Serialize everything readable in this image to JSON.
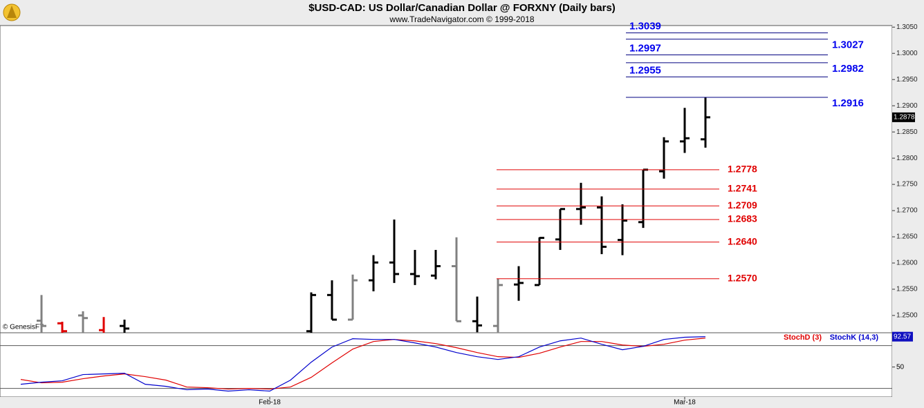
{
  "chart_data": {
    "type": "ohlc",
    "title": "$USD-CAD:  US Dollar/Canadian Dollar @ FORXNY  (Daily bars)",
    "subtitle": "www.TradeNavigator.com © 1999-2018",
    "watermark": "© GenesisFT",
    "xlim": [
      0,
      43
    ],
    "xticks": [
      {
        "value": 13,
        "label": "Feb-18"
      },
      {
        "value": 33,
        "label": "Mar-18"
      }
    ],
    "ylim": [
      1.2467,
      1.3053
    ],
    "yticks": [
      {
        "value": 1.25,
        "label": "1.2500"
      },
      {
        "value": 1.255,
        "label": "1.2550"
      },
      {
        "value": 1.26,
        "label": "1.2600"
      },
      {
        "value": 1.265,
        "label": "1.2650"
      },
      {
        "value": 1.27,
        "label": "1.2700"
      },
      {
        "value": 1.275,
        "label": "1.2750"
      },
      {
        "value": 1.28,
        "label": "1.2800"
      },
      {
        "value": 1.285,
        "label": "1.2850"
      },
      {
        "value": 1.29,
        "label": "1.2900"
      },
      {
        "value": 1.295,
        "label": "1.2950"
      },
      {
        "value": 1.3,
        "label": "1.3000"
      },
      {
        "value": 1.305,
        "label": "1.3050"
      }
    ],
    "bars": {
      "x": [
        2,
        3,
        4,
        5,
        6,
        15,
        16,
        17,
        18,
        19,
        20,
        21,
        22,
        23,
        24,
        25,
        26,
        27,
        28,
        29,
        30,
        31,
        32,
        33,
        34
      ],
      "open": [
        1.249,
        1.2485,
        1.25,
        1.2472,
        1.248,
        1.247,
        1.2539,
        1.2492,
        1.2567,
        1.2601,
        1.2579,
        1.2576,
        1.2594,
        1.2489,
        1.248,
        1.2559,
        1.2558,
        1.2645,
        1.2703,
        1.2706,
        1.2644,
        1.2678,
        1.2775,
        1.2832,
        1.2836
      ],
      "high": [
        1.2539,
        1.2488,
        1.2508,
        1.2497,
        1.2492,
        1.2544,
        1.2567,
        1.2578,
        1.2615,
        1.2683,
        1.2625,
        1.2625,
        1.2649,
        1.2536,
        1.257,
        1.2594,
        1.2649,
        1.2703,
        1.2753,
        1.2727,
        1.2712,
        1.2778,
        1.284,
        1.2896,
        1.2916
      ],
      "low": [
        1.246,
        1.246,
        1.246,
        1.246,
        1.246,
        1.2467,
        1.2492,
        1.2492,
        1.2546,
        1.2562,
        1.2558,
        1.2569,
        1.2489,
        1.2468,
        1.2468,
        1.2528,
        1.2558,
        1.2625,
        1.2673,
        1.2617,
        1.2615,
        1.2667,
        1.2761,
        1.281,
        1.282
      ],
      "close": [
        1.248,
        1.247,
        1.2495,
        1.2465,
        1.2475,
        1.2539,
        1.2492,
        1.2567,
        1.2601,
        1.2579,
        1.2575,
        1.2594,
        1.2489,
        1.2481,
        1.2558,
        1.2562,
        1.2648,
        1.2703,
        1.2706,
        1.2631,
        1.2681,
        1.2778,
        1.2832,
        1.2838,
        1.2878
      ],
      "colors": [
        "#808080",
        "#e00000",
        "#808080",
        "#e00000",
        "#000000",
        "#000000",
        "#000000",
        "#808080",
        "#000000",
        "#000000",
        "#000000",
        "#000000",
        "#808080",
        "#000000",
        "#808080",
        "#000000",
        "#000000",
        "#000000",
        "#000000",
        "#000000",
        "#000000",
        "#000000",
        "#000000",
        "#000000",
        "#000000"
      ]
    },
    "last_price": 1.2878,
    "resistance": {
      "color": "#0000ee",
      "values": [
        1.3039,
        1.3027,
        1.2997,
        1.2982,
        1.2955,
        1.2916
      ],
      "value_labels": [
        "1.3039",
        "1.3027",
        "1.2997",
        "1.2982",
        "1.2955",
        "1.2916"
      ]
    },
    "support": {
      "color": "#e00000",
      "values": [
        1.2778,
        1.2741,
        1.2709,
        1.2683,
        1.264,
        1.257
      ],
      "value_labels": [
        "1.2778",
        "1.2741",
        "1.2709",
        "1.2683",
        "1.2640",
        "1.2570"
      ]
    },
    "indicator": {
      "ylim": [
        8,
        100
      ],
      "yticks": [
        50
      ],
      "reference_lines": [
        20,
        80
      ],
      "x": [
        1,
        2,
        3,
        4,
        5,
        6,
        7,
        8,
        9,
        10,
        11,
        12,
        13,
        14,
        15,
        16,
        17,
        18,
        19,
        20,
        21,
        22,
        23,
        24,
        25,
        26,
        27,
        28,
        29,
        30,
        31,
        32,
        33,
        34
      ],
      "series": [
        {
          "name": "StochD (3)",
          "color": "#e00000",
          "values": [
            32.6,
            27.8,
            28.7,
            33.6,
            37.4,
            40.3,
            36.5,
            31.6,
            22.0,
            21.0,
            19.1,
            20.0,
            19.1,
            22.0,
            35.5,
            55.8,
            75.1,
            85.8,
            88.7,
            86.7,
            82.9,
            77.1,
            70.3,
            64.5,
            63.5,
            69.3,
            78.0,
            85.8,
            85.8,
            80.9,
            79.0,
            81.9,
            87.7,
            90.6
          ]
        },
        {
          "name": "StochK (14,3)",
          "color": "#0000cc",
          "values": [
            25.8,
            28.7,
            30.7,
            39.4,
            40.3,
            41.3,
            25.8,
            22.9,
            18.1,
            19.1,
            16.2,
            18.1,
            16.2,
            31.6,
            56.8,
            78.0,
            89.7,
            88.7,
            88.7,
            83.8,
            78.0,
            70.3,
            64.5,
            60.6,
            64.5,
            78.0,
            86.7,
            90.6,
            81.9,
            74.2,
            79.0,
            88.7,
            91.8,
            92.57
          ]
        }
      ],
      "last_value": 92.57
    }
  }
}
